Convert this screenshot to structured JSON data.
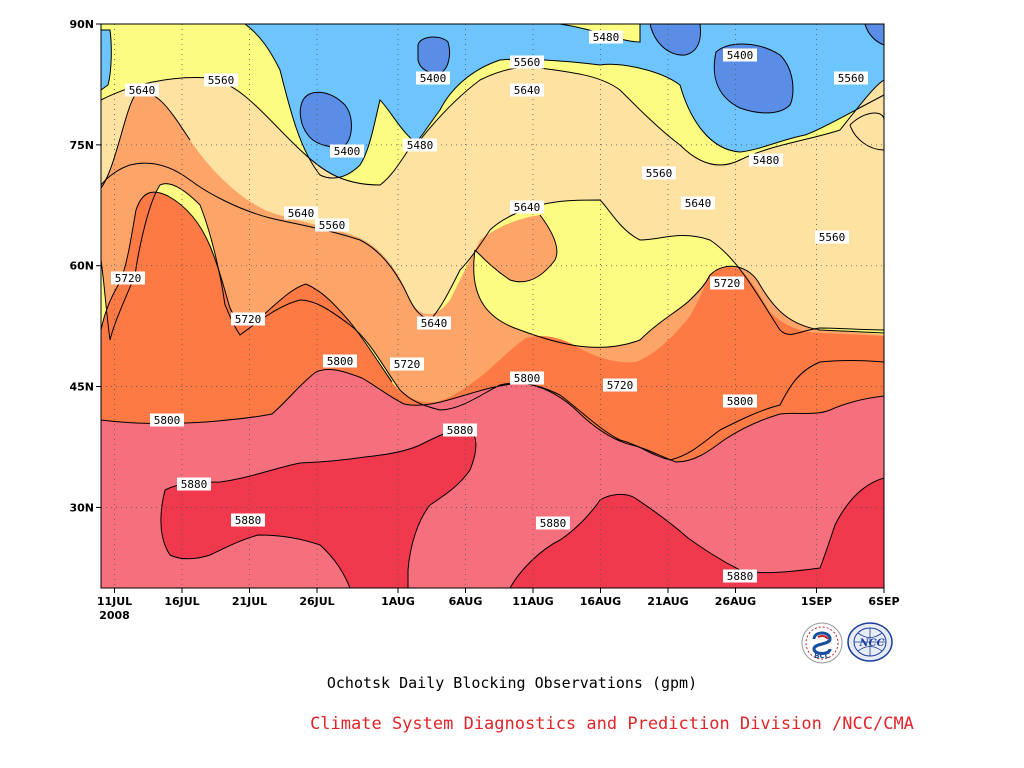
{
  "chart_data": {
    "type": "heatmap",
    "subtype": "filled-contour (time–latitude Hovmöller)",
    "variable_units": "gpm",
    "x_tick_labels": [
      "11JUL",
      "16JUL",
      "21JUL",
      "26JUL",
      "1AUG",
      "6AUG",
      "11AUG",
      "16AUG",
      "21AUG",
      "26AUG",
      "1SEP",
      "6SEP"
    ],
    "x_tick_sublabel": "2008",
    "y_tick_labels": [
      "30N",
      "45N",
      "60N",
      "75N",
      "90N"
    ],
    "y_tick_values": [
      30,
      45,
      60,
      75,
      90
    ],
    "ylim": [
      20,
      90
    ],
    "x_range": [
      "2008-07-10",
      "2008-09-06"
    ],
    "contour_levels": [
      5400,
      5480,
      5560,
      5640,
      5720,
      5800,
      5880
    ],
    "fill_colors": {
      "below_5400": "#5a8ee6",
      "5400_5480": "#5a8ee6",
      "5480_5560": "#6ec4fd",
      "5560_5640": "#fcfc82",
      "5640_5720": "#fde2a2",
      "5720_5800": "#fda568",
      "5800_5880": "#fd7a45",
      "above_5880_low": "#f5707c",
      "above_5880": "#f0394d"
    },
    "contour_labels": [
      {
        "text": "5480"
      },
      {
        "text": "5400"
      },
      {
        "text": "5560"
      },
      {
        "text": "5400"
      },
      {
        "text": "5640"
      },
      {
        "text": "5560"
      },
      {
        "text": "5640"
      },
      {
        "text": "5560"
      },
      {
        "text": "5400"
      },
      {
        "text": "5480"
      },
      {
        "text": "5480"
      },
      {
        "text": "5560"
      },
      {
        "text": "5640"
      },
      {
        "text": "5560"
      },
      {
        "text": "5640"
      },
      {
        "text": "5640"
      },
      {
        "text": "5560"
      },
      {
        "text": "5720"
      },
      {
        "text": "5720"
      },
      {
        "text": "5640"
      },
      {
        "text": "5720"
      },
      {
        "text": "5800"
      },
      {
        "text": "5720"
      },
      {
        "text": "5800"
      },
      {
        "text": "5720"
      },
      {
        "text": "5800"
      },
      {
        "text": "5800"
      },
      {
        "text": "5880"
      },
      {
        "text": "5880"
      },
      {
        "text": "5880"
      },
      {
        "text": "5880"
      },
      {
        "text": "5880"
      }
    ],
    "title": "Ochotsk Daily Blocking Observations (gpm)"
  },
  "credit": "Climate System Diagnostics and Prediction Division /NCC/CMA",
  "credit_color": "#e0242a",
  "logos": {
    "bcc": {
      "text": "BCC",
      "icon": "bcc-logo-icon"
    },
    "ncc": {
      "text": "NCC",
      "icon": "ncc-logo-icon"
    }
  }
}
